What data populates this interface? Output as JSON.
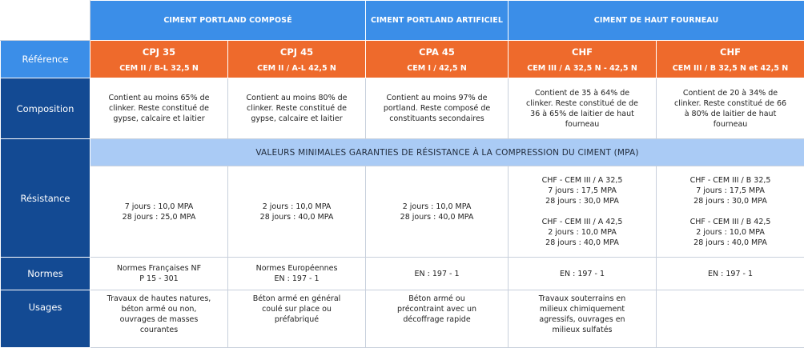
{
  "groups": {
    "cpc": "CIMENT PORTLAND COMPOSÉ",
    "cpa": "CIMENT PORTLAND ARTIFICIEL",
    "chf": "CIMENT DE HAUT FOURNEAU"
  },
  "rows": {
    "reference": "Référence",
    "composition": "Composition",
    "resistance": "Résistance",
    "normes": "Normes",
    "usages": "Usages"
  },
  "references": [
    {
      "code": "CPJ 35",
      "class": "CEM II / B-L 32,5 N"
    },
    {
      "code": "CPJ 45",
      "class": "CEM II / A-L 42,5 N"
    },
    {
      "code": "CPA 45",
      "class": "CEM I / 42,5 N"
    },
    {
      "code": "CHF",
      "class": "CEM III / A 32,5 N - 42,5 N"
    },
    {
      "code": "CHF",
      "class": "CEM III / B 32,5 N et 42,5 N"
    }
  ],
  "composition": [
    [
      "Contient au moins 65% de",
      "clinker. Reste constitué de",
      "gypse, calcaire et laitier"
    ],
    [
      "Contient au moins 80% de",
      "clinker. Reste constitué de",
      "gypse, calcaire et laitier"
    ],
    [
      "Contient au moins 97% de",
      "portland. Reste composé de",
      "constituants secondaires"
    ],
    [
      "Contient de 35 à 64% de",
      "clinker. Reste constitué de de",
      "36 à 65% de laitier de haut",
      "fourneau"
    ],
    [
      "Contient de 20 à 34% de",
      "clinker. Reste constitué de 66",
      "à 80% de laitier de haut",
      "fourneau"
    ]
  ],
  "band_title": "VALEURS MINIMALES GARANTIES DE RÉSISTANCE À LA COMPRESSION DU CIMENT (MPA)",
  "resistance": [
    [
      "7 jours : 10,0 MPA",
      "28 jours : 25,0 MPA"
    ],
    [
      "2 jours : 10,0 MPA",
      "28 jours : 40,0 MPA"
    ],
    [
      "2 jours : 10,0 MPA",
      "28 jours : 40,0 MPA"
    ],
    [
      "CHF - CEM III / A 32,5",
      "7 jours : 17,5 MPA",
      "28 jours : 30,0 MPA",
      "",
      "CHF - CEM III / A 42,5",
      "2 jours : 10,0 MPA",
      "28 jours : 40,0 MPA"
    ],
    [
      "CHF - CEM III / B 32,5",
      "7 jours : 17,5 MPA",
      "28 jours : 30,0 MPA",
      "",
      "CHF - CEM III / B 42,5",
      "2 jours : 10,0 MPA",
      "28 jours : 40,0 MPA"
    ]
  ],
  "normes": [
    [
      "Normes Françaises NF",
      "P 15 - 301"
    ],
    [
      "Normes Européennes",
      "EN : 197 - 1"
    ],
    [
      "EN : 197 - 1"
    ],
    [
      "EN : 197 - 1"
    ],
    [
      "EN : 197 - 1"
    ]
  ],
  "usages": [
    [
      "Travaux de hautes natures,",
      "béton armé ou non,",
      "ouvrages de masses",
      "courantes"
    ],
    [
      "Béton armé en général",
      "coulé sur place ou",
      "préfabriqué"
    ],
    [
      "Béton armé ou",
      "précontraint avec un",
      "décoffrage rapide"
    ],
    [
      "Travaux souterrains en",
      "milieux chimiquement",
      "agressifs, ouvrages en",
      "milieux sulfatés"
    ],
    []
  ]
}
